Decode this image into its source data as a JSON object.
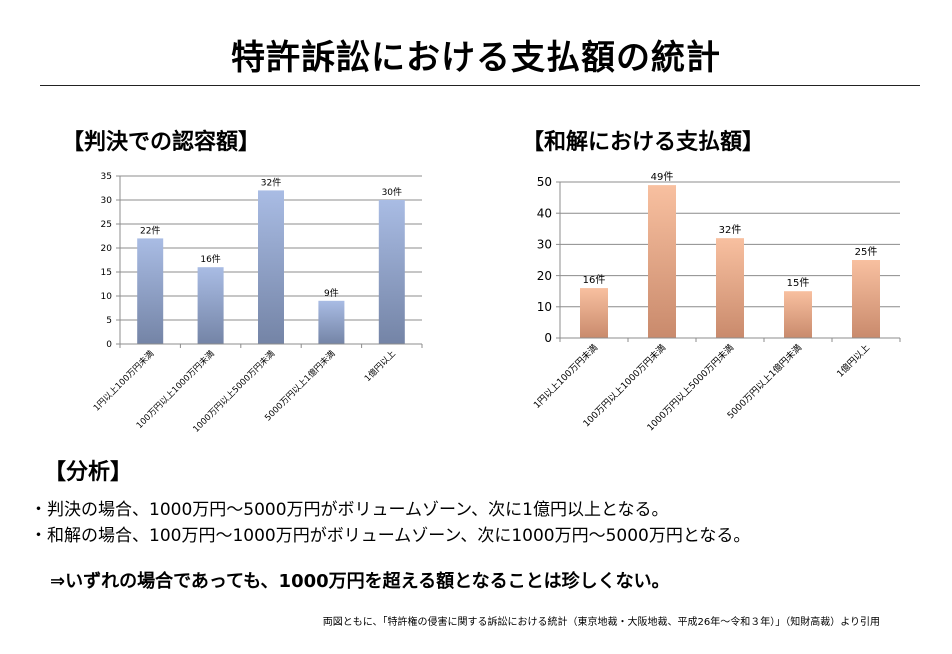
{
  "page": {
    "title": "特許訴訟における支払額の統計"
  },
  "charts": [
    {
      "heading": "【判決での認容額】",
      "color_top": "#a9bce4",
      "color_bottom": "#7484a6"
    },
    {
      "heading": "【和解における支払額】",
      "color_top": "#f8c0a0",
      "color_bottom": "#c98a6c"
    }
  ],
  "chart_data": [
    {
      "type": "bar",
      "title": "【判決での認容額】",
      "categories": [
        "1円以上100万円未満",
        "100万円以上1000万円未満",
        "1000万円以上5000万円未満",
        "5000万円以上1億円未満",
        "1億円以上"
      ],
      "values": [
        22,
        16,
        32,
        9,
        30
      ],
      "data_labels": [
        "22件",
        "16件",
        "32件",
        "9件",
        "30件"
      ],
      "ylim": [
        0,
        35
      ],
      "yticks": [
        0,
        5,
        10,
        15,
        20,
        25,
        30,
        35
      ],
      "grid": true,
      "xlabel": "",
      "ylabel": ""
    },
    {
      "type": "bar",
      "title": "【和解における支払額】",
      "categories": [
        "1円以上100万円未満",
        "100万円以上1000万円未満",
        "1000万円以上5000万円未満",
        "5000万円以上1億円未満",
        "1億円以上"
      ],
      "values": [
        16,
        49,
        32,
        15,
        25
      ],
      "data_labels": [
        "16件",
        "49件",
        "32件",
        "15件",
        "25件"
      ],
      "ylim": [
        0,
        50
      ],
      "yticks": [
        0,
        10,
        20,
        30,
        40,
        50
      ],
      "grid": true,
      "xlabel": "",
      "ylabel": ""
    }
  ],
  "analysis": {
    "heading": "【分析】",
    "bullets": [
      "・判決の場合、1000万円～5000万円がボリュームゾーン、次に1億円以上となる。",
      "・和解の場合、100万円～1000万円がボリュームゾーン、次に1000万円～5000万円となる。"
    ],
    "conclusion": "⇒いずれの場合であっても、1000万円を超える額となることは珍しくない。"
  },
  "source": "両図ともに、「特許権の侵害に関する訴訟における統計（東京地裁・大阪地裁、平成26年～令和３年）」（知財高裁）より引用"
}
